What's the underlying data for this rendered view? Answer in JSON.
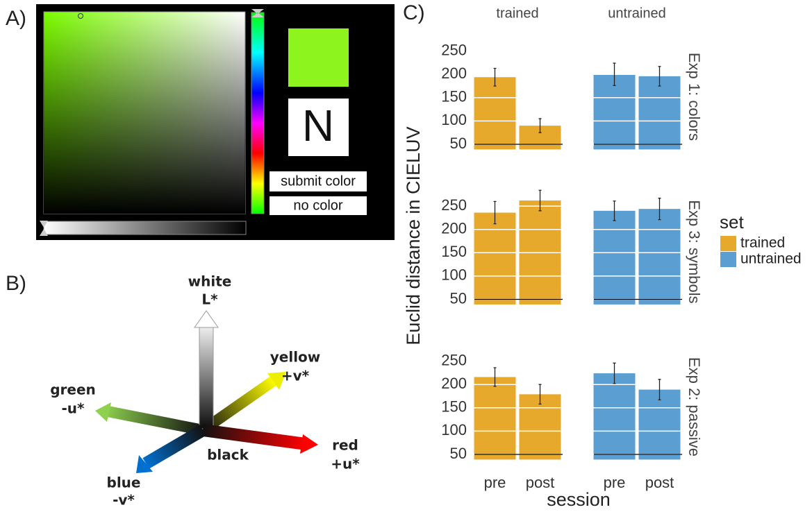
{
  "panel_a": {
    "label": "A)",
    "letter": "N",
    "buttons": [
      "submit color",
      "no color"
    ]
  },
  "panel_b": {
    "label": "B)",
    "center": "black",
    "axes": [
      {
        "name": "white",
        "code": "L*"
      },
      {
        "name": "yellow",
        "code": "+v*"
      },
      {
        "name": "green",
        "code": "-u*"
      },
      {
        "name": "red",
        "code": "+u*"
      },
      {
        "name": "blue",
        "code": "-v*"
      }
    ]
  },
  "chart_data": {
    "type": "bar",
    "panel_label": "C)",
    "ylabel": "Euclid distance in CIELUV",
    "xlabel": "session",
    "columns": [
      "trained",
      "untrained"
    ],
    "rows": [
      "Exp 1: colors",
      "Exp 3: symbols",
      "Exp 2: passive"
    ],
    "categories": [
      "pre",
      "post"
    ],
    "legend_title": "set",
    "series": [
      {
        "name": "trained",
        "color": "#e6a92c",
        "values": [
          [
            194,
            90
          ],
          [
            236,
            262
          ],
          [
            216,
            179
          ]
        ],
        "errors": [
          [
            19,
            15
          ],
          [
            24,
            22
          ],
          [
            20,
            21
          ]
        ]
      },
      {
        "name": "untrained",
        "color": "#5b9fd2",
        "values": [
          [
            200,
            196
          ],
          [
            240,
            244
          ],
          [
            224,
            189
          ]
        ],
        "errors": [
          [
            24,
            21
          ],
          [
            21,
            23
          ],
          [
            22,
            22
          ]
        ]
      }
    ],
    "ylim": [
      39,
      265
    ],
    "yticks": [
      50,
      100,
      150,
      200,
      250
    ],
    "hline": 50
  }
}
